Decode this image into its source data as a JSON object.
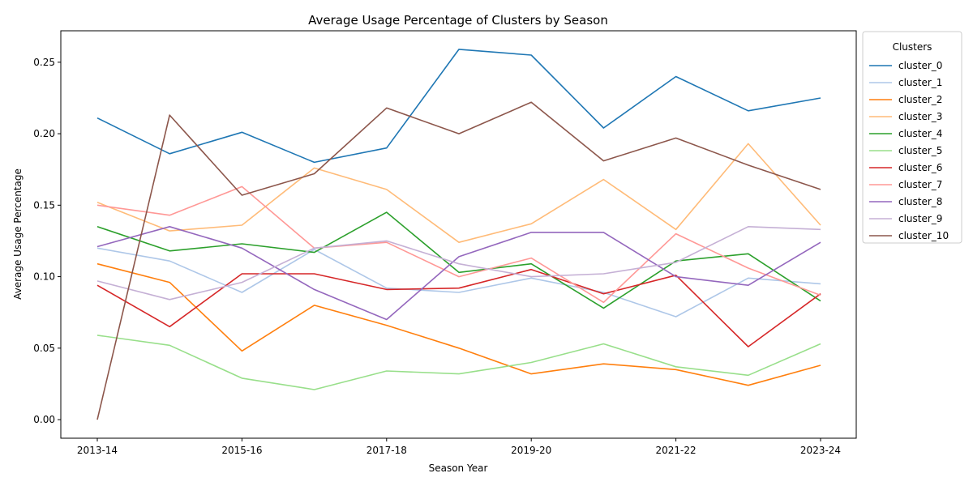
{
  "chart_data": {
    "type": "line",
    "title": "Average Usage Percentage of Clusters by Season",
    "xlabel": "Season Year",
    "ylabel": "Average Usage Percentage",
    "x": [
      "2013-14",
      "2014-15",
      "2015-16",
      "2016-17",
      "2017-18",
      "2018-19",
      "2019-20",
      "2020-21",
      "2021-22",
      "2022-23",
      "2023-24"
    ],
    "xtick_labels": [
      "2013-14",
      "2015-16",
      "2017-18",
      "2019-20",
      "2021-22",
      "2023-24"
    ],
    "yticks": [
      "0.00",
      "0.05",
      "0.10",
      "0.15",
      "0.20",
      "0.25"
    ],
    "ylim": [
      -0.013,
      0.272
    ],
    "grid": false,
    "legend_title": "Clusters",
    "legend_position": "outside-right-top",
    "series": [
      {
        "name": "cluster_0",
        "color": "#1f77b4",
        "values": [
          0.211,
          0.186,
          0.201,
          0.18,
          0.19,
          0.259,
          0.255,
          0.204,
          0.24,
          0.216,
          0.225
        ]
      },
      {
        "name": "cluster_1",
        "color": "#aec7e8",
        "values": [
          0.12,
          0.111,
          0.089,
          0.119,
          0.092,
          0.089,
          0.099,
          0.089,
          0.072,
          0.099,
          0.095
        ]
      },
      {
        "name": "cluster_2",
        "color": "#ff7f0e",
        "values": [
          0.109,
          0.096,
          0.048,
          0.08,
          0.066,
          0.05,
          0.032,
          0.039,
          0.035,
          0.024,
          0.038
        ]
      },
      {
        "name": "cluster_3",
        "color": "#ffbb78",
        "values": [
          0.152,
          0.132,
          0.136,
          0.176,
          0.161,
          0.124,
          0.137,
          0.168,
          0.133,
          0.193,
          0.136
        ]
      },
      {
        "name": "cluster_4",
        "color": "#2ca02c",
        "values": [
          0.135,
          0.118,
          0.123,
          0.117,
          0.145,
          0.103,
          0.109,
          0.078,
          0.111,
          0.116,
          0.083
        ]
      },
      {
        "name": "cluster_5",
        "color": "#98df8a",
        "values": [
          0.059,
          0.052,
          0.029,
          0.021,
          0.034,
          0.032,
          0.04,
          0.053,
          0.037,
          0.031,
          0.053
        ]
      },
      {
        "name": "cluster_6",
        "color": "#d62728",
        "values": [
          0.094,
          0.065,
          0.102,
          0.102,
          0.091,
          0.092,
          0.105,
          0.088,
          0.101,
          0.051,
          0.088
        ]
      },
      {
        "name": "cluster_7",
        "color": "#ff9896",
        "values": [
          0.15,
          0.143,
          0.163,
          0.12,
          0.124,
          0.1,
          0.113,
          0.082,
          0.13,
          0.106,
          0.087
        ]
      },
      {
        "name": "cluster_8",
        "color": "#9467bd",
        "values": [
          0.121,
          0.135,
          0.12,
          0.091,
          0.07,
          0.114,
          0.131,
          0.131,
          0.1,
          0.094,
          0.124
        ]
      },
      {
        "name": "cluster_9",
        "color": "#c5b0d5",
        "values": [
          0.097,
          0.084,
          0.096,
          0.12,
          0.125,
          0.109,
          0.1,
          0.102,
          0.11,
          0.135,
          0.133
        ]
      },
      {
        "name": "cluster_10",
        "color": "#8c564b",
        "values": [
          0.0,
          0.213,
          0.157,
          0.172,
          0.218,
          0.2,
          0.222,
          0.181,
          0.197,
          0.178,
          0.161
        ]
      }
    ]
  }
}
